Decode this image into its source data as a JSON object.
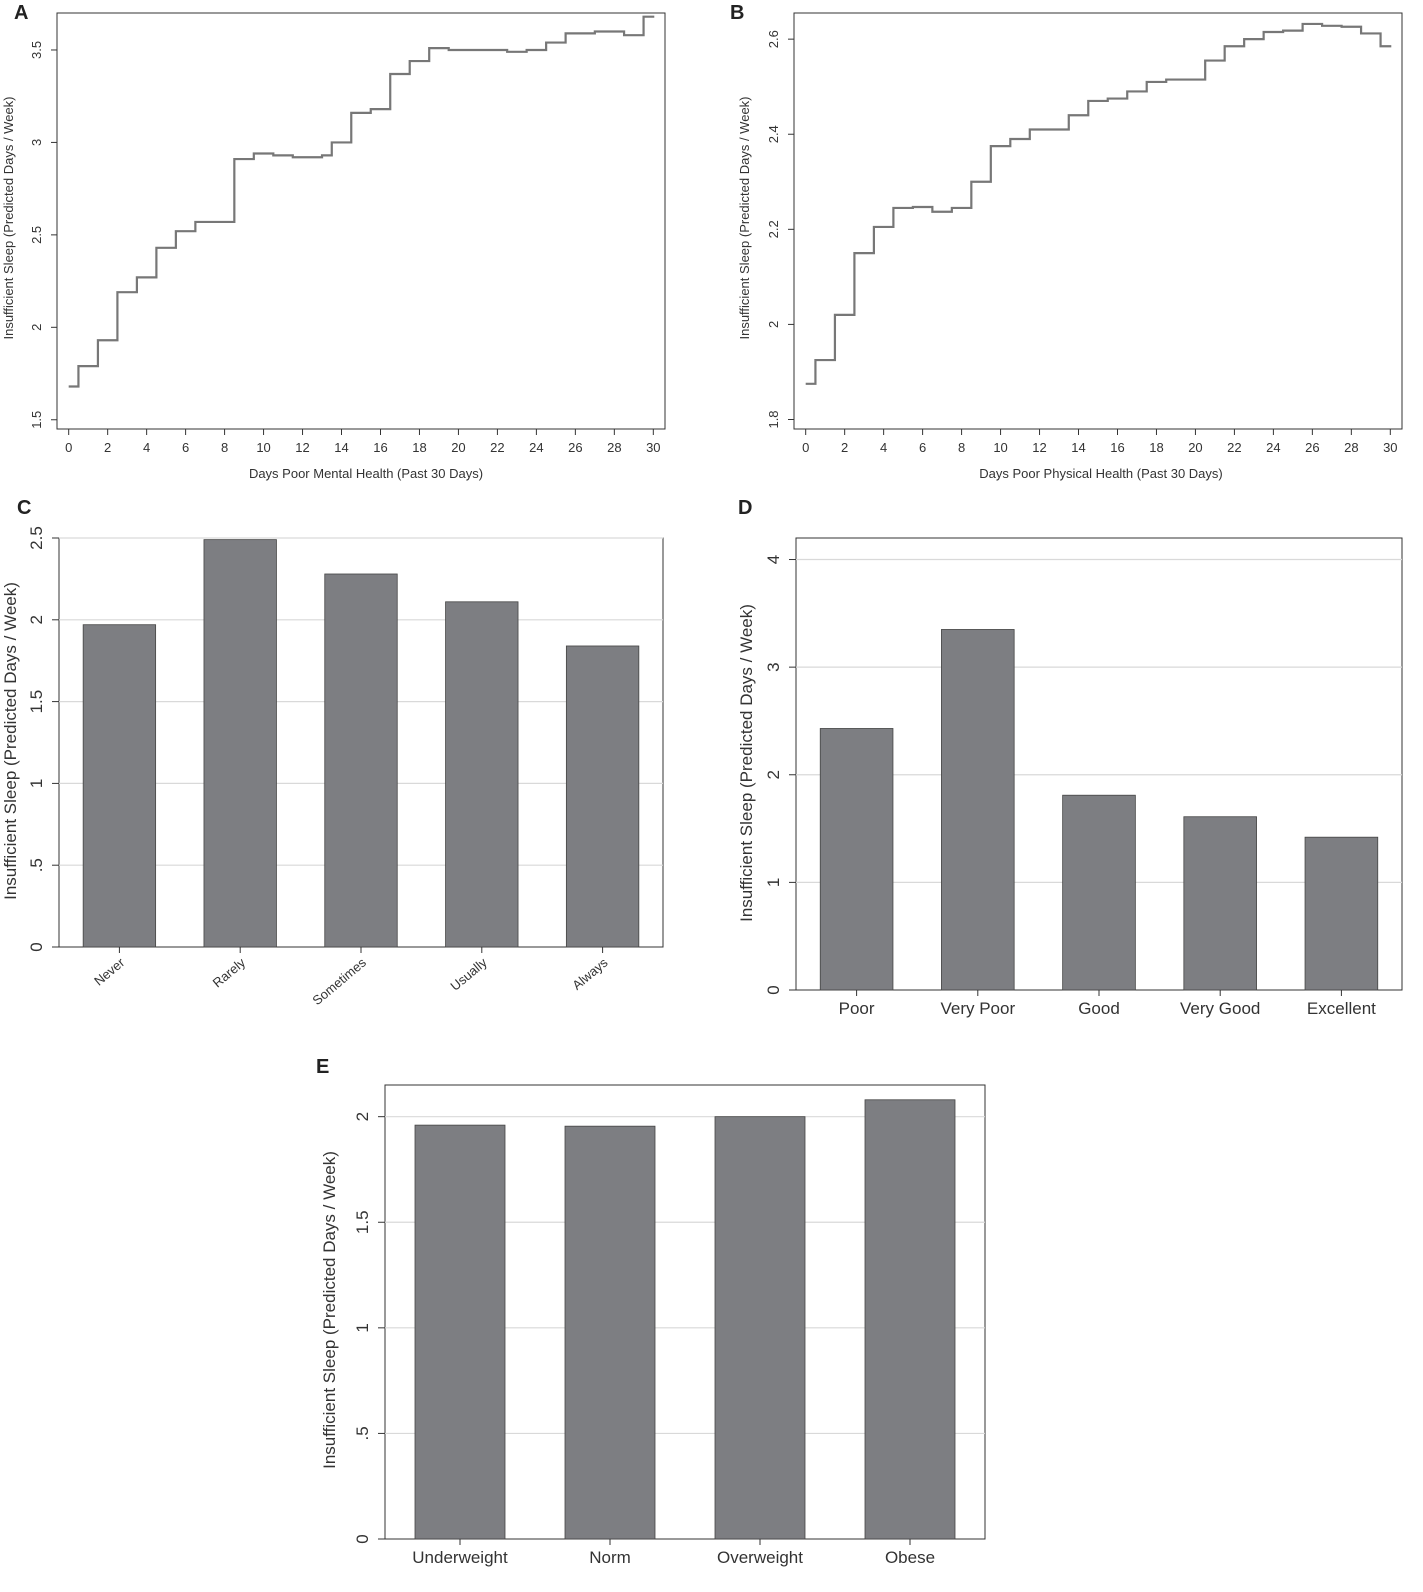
{
  "chart_data": [
    {
      "panel": "A",
      "type": "line",
      "xlabel": "Days Poor Mental Health (Past 30 Days)",
      "ylabel": "Insufficient Sleep (Predicted Days / Week)",
      "xlim": [
        -0.6,
        30.6
      ],
      "ylim": [
        1.45,
        3.7
      ],
      "x_ticks": [
        0,
        2,
        4,
        6,
        8,
        10,
        12,
        14,
        16,
        18,
        20,
        22,
        24,
        26,
        28,
        30
      ],
      "y_ticks": [
        1.5,
        2,
        2.5,
        3,
        3.5
      ],
      "y_tick_labels": [
        "1.5",
        "2",
        "2.5",
        "3",
        "3.5"
      ],
      "grid": false,
      "series": [
        {
          "step": true,
          "x": [
            0,
            0.5,
            1,
            1.5,
            2,
            2.5,
            3,
            3.5,
            4,
            4.5,
            5,
            5.5,
            6,
            6.5,
            7,
            7.5,
            8,
            8.5,
            9,
            9.5,
            10,
            10.5,
            11,
            11.5,
            12,
            12.5,
            13,
            13.5,
            14,
            14.5,
            15,
            15.5,
            16,
            16.5,
            17,
            17.5,
            18,
            18.5,
            19,
            19.5,
            20,
            20.5,
            21,
            21.5,
            22,
            22.5,
            23,
            23.5,
            24,
            24.5,
            25,
            25.5,
            26,
            26.5,
            27,
            27.5,
            28,
            28.5,
            29,
            29.5,
            30
          ],
          "y": [
            1.68,
            1.79,
            1.79,
            1.93,
            1.93,
            2.19,
            2.19,
            2.27,
            2.27,
            2.43,
            2.43,
            2.52,
            2.52,
            2.57,
            2.57,
            2.57,
            2.57,
            2.91,
            2.91,
            2.94,
            2.94,
            2.93,
            2.93,
            2.92,
            2.92,
            2.92,
            2.93,
            3.0,
            3.0,
            3.16,
            3.16,
            3.18,
            3.18,
            3.37,
            3.37,
            3.44,
            3.44,
            3.51,
            3.51,
            3.5,
            3.5,
            3.5,
            3.5,
            3.5,
            3.5,
            3.49,
            3.49,
            3.5,
            3.5,
            3.54,
            3.54,
            3.59,
            3.59,
            3.59,
            3.6,
            3.6,
            3.6,
            3.58,
            3.58,
            3.68,
            3.68
          ]
        }
      ]
    },
    {
      "panel": "B",
      "type": "line",
      "xlabel": "Days Poor Physical Health (Past 30 Days)",
      "ylabel": "Insufficient Sleep (Predicted Days / Week)",
      "xlim": [
        -0.6,
        30.6
      ],
      "ylim": [
        1.78,
        2.655
      ],
      "x_ticks": [
        0,
        2,
        4,
        6,
        8,
        10,
        12,
        14,
        16,
        18,
        20,
        22,
        24,
        26,
        28,
        30
      ],
      "y_ticks": [
        1.8,
        2.0,
        2.2,
        2.4,
        2.6
      ],
      "y_tick_labels": [
        "1.8",
        "2",
        "2.2",
        "2.4",
        "2.6"
      ],
      "grid": false,
      "series": [
        {
          "step": true,
          "x": [
            0,
            0.5,
            1,
            1.5,
            2,
            2.5,
            3,
            3.5,
            4,
            4.5,
            5,
            5.5,
            6,
            6.5,
            7,
            7.5,
            8,
            8.5,
            9,
            9.5,
            10,
            10.5,
            11,
            11.5,
            12,
            12.5,
            13,
            13.5,
            14,
            14.5,
            15,
            15.5,
            16,
            16.5,
            17,
            17.5,
            18,
            18.5,
            19,
            19.5,
            20,
            20.5,
            21,
            21.5,
            22,
            22.5,
            23,
            23.5,
            24,
            24.5,
            25,
            25.5,
            26,
            26.5,
            27,
            27.5,
            28,
            28.5,
            29,
            29.5,
            30
          ],
          "y": [
            1.875,
            1.925,
            1.925,
            2.02,
            2.02,
            2.15,
            2.15,
            2.205,
            2.205,
            2.245,
            2.245,
            2.247,
            2.247,
            2.237,
            2.237,
            2.245,
            2.245,
            2.3,
            2.3,
            2.375,
            2.375,
            2.39,
            2.39,
            2.41,
            2.41,
            2.41,
            2.41,
            2.44,
            2.44,
            2.47,
            2.47,
            2.475,
            2.475,
            2.49,
            2.49,
            2.51,
            2.51,
            2.515,
            2.515,
            2.515,
            2.515,
            2.555,
            2.555,
            2.585,
            2.585,
            2.6,
            2.6,
            2.615,
            2.615,
            2.618,
            2.618,
            2.632,
            2.632,
            2.628,
            2.628,
            2.626,
            2.626,
            2.612,
            2.612,
            2.585,
            2.585
          ]
        }
      ]
    },
    {
      "panel": "C",
      "type": "bar",
      "ylabel": "Insufficient Sleep (Predicted Days / Week)",
      "categories": [
        "Never",
        "Rarely",
        "Sometimes",
        "Usually",
        "Always"
      ],
      "values": [
        1.97,
        2.49,
        2.28,
        2.11,
        1.84
      ],
      "ylim": [
        0,
        2.5
      ],
      "y_ticks": [
        0,
        0.5,
        1,
        1.5,
        2,
        2.5
      ],
      "y_tick_labels": [
        "0",
        ".5",
        "1",
        "1.5",
        "2",
        "2.5"
      ],
      "grid": true,
      "bar_color": "#7d7e82"
    },
    {
      "panel": "D",
      "type": "bar",
      "ylabel": "Insufficient Sleep (Predicted Days / Week)",
      "categories": [
        "Poor",
        "Very Poor",
        "Good",
        "Very Good",
        "Excellent"
      ],
      "values": [
        2.43,
        3.35,
        1.81,
        1.61,
        1.42
      ],
      "ylim": [
        0,
        4.2
      ],
      "y_ticks": [
        0,
        1,
        2,
        3,
        4
      ],
      "y_tick_labels": [
        "0",
        "1",
        "2",
        "3",
        "4"
      ],
      "grid": true,
      "bar_color": "#7d7e82"
    },
    {
      "panel": "E",
      "type": "bar",
      "ylabel": "Insufficient Sleep (Predicted Days / Week)",
      "categories": [
        "Underweight",
        "Norm",
        "Overweight",
        "Obese"
      ],
      "values": [
        1.96,
        1.955,
        2.0,
        2.08
      ],
      "ylim": [
        0,
        2.15
      ],
      "y_ticks": [
        0,
        0.5,
        1,
        1.5,
        2
      ],
      "y_tick_labels": [
        "0",
        ".5",
        "1",
        "1.5",
        "2"
      ],
      "grid": true,
      "bar_color": "#7d7e82"
    }
  ]
}
